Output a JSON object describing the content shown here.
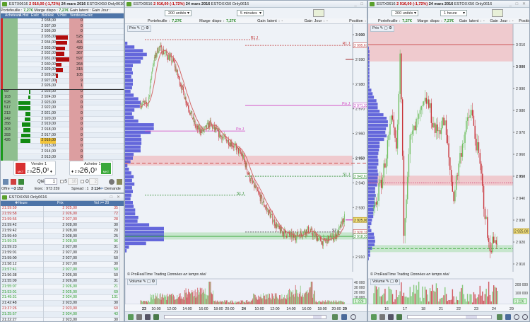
{
  "instrument_title": {
    "symbol": "ESTX0616",
    "price_change": "2 916,00 (-1,72%)",
    "date": "24 mars 2016",
    "feed": "ESTOXX50 Only0616"
  },
  "portfolio": {
    "portefeuille_label": "Portefeuille :",
    "portefeuille": "7,27€",
    "marge_label": "Marge dispo :",
    "marge": "7,27€",
    "gain_latent_label": "Gain latent :",
    "gain_latent": "-",
    "gain_jour_label": "Gain Jour :",
    "gain_jour": "-",
    "position_label": "Position :",
    "position": "0"
  },
  "orderbook": {
    "headers": [
      "Acheteurs",
      "A.Hist",
      "Exéc",
      "Bid/Ask",
      "V.Hist",
      "Vendeurs",
      "Exéc"
    ],
    "rows": [
      {
        "price": "2 938,00",
        "bid": "",
        "ask": "0",
        "askq": 0,
        "bidq": 0
      },
      {
        "price": "2 937,00",
        "bid": "",
        "ask": "0",
        "askq": 0,
        "bidq": 0
      },
      {
        "price": "2 936,00",
        "bid": "",
        "ask": "0",
        "askq": 0,
        "bidq": 0
      },
      {
        "price": "2 935,00",
        "bid": "",
        "ask": "525",
        "askq": 525,
        "bidq": 0
      },
      {
        "price": "2 934,00",
        "bid": "",
        "ask": "491",
        "askq": 491,
        "bidq": 0
      },
      {
        "price": "2 933,00",
        "bid": "",
        "ask": "420",
        "askq": 420,
        "bidq": 0
      },
      {
        "price": "2 932,00",
        "bid": "",
        "ask": "367",
        "askq": 367,
        "bidq": 0
      },
      {
        "price": "2 931,00",
        "bid": "",
        "ask": "597",
        "askq": 597,
        "bidq": 0
      },
      {
        "price": "2 930,00",
        "bid": "",
        "ask": "264",
        "askq": 264,
        "bidq": 0
      },
      {
        "price": "2 929,00",
        "bid": "",
        "ask": "315",
        "askq": 315,
        "bidq": 0
      },
      {
        "price": "2 928,00",
        "bid": "",
        "ask": "105",
        "askq": 105,
        "bidq": 0
      },
      {
        "price": "2 927,00",
        "bid": "",
        "ask": "9",
        "askq": 9,
        "bidq": 0
      },
      {
        "price": "2 926,00",
        "bid": "",
        "ask": "1",
        "askq": 1,
        "bidq": 0
      },
      {
        "price": "2 925,00",
        "bid": "69",
        "ask": "0",
        "askq": 0,
        "bidq": 69
      },
      {
        "price": "2 924,00",
        "bid": "103",
        "ask": "0",
        "askq": 0,
        "bidq": 103
      },
      {
        "price": "2 923,00",
        "bid": "528",
        "ask": "0",
        "askq": 0,
        "bidq": 528
      },
      {
        "price": "2 922,00",
        "bid": "517",
        "ask": "0",
        "askq": 0,
        "bidq": 517
      },
      {
        "price": "2 921,00",
        "bid": "213",
        "ask": "0",
        "askq": 0,
        "bidq": 213
      },
      {
        "price": "2 920,00",
        "bid": "242",
        "ask": "0",
        "askq": 0,
        "bidq": 242
      },
      {
        "price": "2 919,00",
        "bid": "358",
        "ask": "0",
        "askq": 0,
        "bidq": 358
      },
      {
        "price": "2 918,00",
        "bid": "303",
        "ask": "0",
        "askq": 0,
        "bidq": 303
      },
      {
        "price": "2 917,00",
        "bid": "393",
        "ask": "0",
        "askq": 0,
        "bidq": 393
      },
      {
        "price": "2 916,00",
        "bid": "426",
        "ask": "0",
        "askq": 0,
        "bidq": 426,
        "last": true
      },
      {
        "price": "2 915,00",
        "bid": "",
        "ask": "0",
        "askq": 0,
        "bidq": 0
      },
      {
        "price": "2 914,00",
        "bid": "",
        "ask": "0",
        "askq": 0,
        "bidq": 0
      },
      {
        "price": "2 913,00",
        "bid": "",
        "ask": "0",
        "askq": 0,
        "bidq": 0
      }
    ]
  },
  "order_buttons": {
    "sell_label": "Vendre 1",
    "sell_prefix": "2 9",
    "sell_price": "25,0",
    "sell_sup": "0",
    "buy_label": "Acheter 1",
    "buy_prefix": "2 9",
    "buy_price": "26,0",
    "buy_sup": "0",
    "mkt": "MKT"
  },
  "qty_row": {
    "qty_label": "Qté",
    "qty": "1",
    "s_label": "S",
    "s_value": "10",
    "o_label": "O",
    "o_value": "2"
  },
  "stats": {
    "offre_label": "Offre",
    "offre": "3 152",
    "exec_label": "Exec :",
    "exec": "973 259",
    "spread_label": "Spread :",
    "spread": "1",
    "demande": "3 114",
    "demande_label": "Demande"
  },
  "trades_window": {
    "title": "ESTOXX50 Only0616",
    "headers": [
      "Heure",
      "Prix",
      "Vol >= 20"
    ],
    "rows": [
      [
        "21:59:59",
        "2 925,00",
        "35",
        "sell"
      ],
      [
        "21:59:58",
        "2 926,00",
        "72",
        "sell"
      ],
      [
        "21:59:56",
        "2 927,00",
        "28",
        "sell"
      ],
      [
        "21:59:42",
        "2 928,00",
        "30",
        "neutral"
      ],
      [
        "21:59:42",
        "2 928,00",
        "20",
        "neutral"
      ],
      [
        "21:59:40",
        "2 928,00",
        "25",
        "neutral"
      ],
      [
        "21:59:25",
        "2 928,00",
        "96",
        "buy"
      ],
      [
        "21:59:23",
        "2 927,00",
        "31",
        "neutral"
      ],
      [
        "21:59:01",
        "2 927,00",
        "23",
        "neutral"
      ],
      [
        "21:59:00",
        "2 927,00",
        "50",
        "neutral"
      ],
      [
        "21:58:12",
        "2 927,00",
        "30",
        "neutral"
      ],
      [
        "21:57:41",
        "2 927,00",
        "50",
        "buy"
      ],
      [
        "21:56:38",
        "2 926,00",
        "50",
        "neutral"
      ],
      [
        "21:55:09",
        "2 926,00",
        "31",
        "neutral"
      ],
      [
        "21:55:07",
        "2 926,00",
        "21",
        "buy"
      ],
      [
        "21:53:01",
        "2 925,00",
        "69",
        "buy"
      ],
      [
        "21:49:31",
        "2 924,00",
        "131",
        "buy"
      ],
      [
        "21:42:48",
        "2 923,00",
        "30",
        "neutral"
      ],
      [
        "21:37:26",
        "2 923,00",
        "60",
        "sell"
      ],
      [
        "21:25:57",
        "2 924,00",
        "43",
        "buy"
      ],
      [
        "21:22:27",
        "2 923,00",
        "30",
        "neutral"
      ],
      [
        "21:07:35",
        "2 923,00",
        "44",
        "buy"
      ],
      [
        "21:05:32",
        "2 922,00",
        "121",
        "neutral"
      ]
    ]
  },
  "chart_5min": {
    "units": "200 unités",
    "timeframe": "5 minutes",
    "panel_label": "Prix",
    "volume_label": "Volume",
    "watermark": "© ProRealTime Trading",
    "watermark_note": "Données en temps réel",
    "price_ticks": [
      "3 000",
      "2 990",
      "2 980",
      "2 970",
      "2 960",
      "2 950",
      "2 940",
      "2 930",
      "2 910"
    ],
    "price_tick_values": [
      3000,
      2990,
      2980,
      2970,
      2960,
      2950,
      2940,
      2930,
      2910
    ],
    "tags": [
      {
        "text": "2 995,67",
        "value": 2995.67,
        "color": "#c04040"
      },
      {
        "text": "2 971,33",
        "value": 2971.33,
        "color": "#c040c0"
      },
      {
        "text": "2 942,67",
        "value": 2942.67,
        "color": "#2a8a2a"
      },
      {
        "text": "2 925,00",
        "value": 2925,
        "color": "#b08a00",
        "fill": "#f5e27a"
      },
      {
        "text": "2 920,10",
        "value": 2920.1,
        "color": "#c04040"
      },
      {
        "text": "2 918,33",
        "value": 2918.33,
        "color": "#2a8a2a"
      }
    ],
    "levels": [
      {
        "label": "R1 J",
        "value": 2998
      },
      {
        "label": "R1 J",
        "value": 2995.67
      },
      {
        "label": "Piv J",
        "value": 2971.33
      },
      {
        "label": "Piv J",
        "value": 2961
      },
      {
        "label": "S1 J",
        "value": 2942.67
      },
      {
        "label": "S1 J",
        "value": 2935
      },
      {
        "label": "S2 J",
        "value": 2920.1
      }
    ],
    "volume_ticks": [
      "40 000",
      "30 000",
      "20 000",
      "10 000"
    ],
    "volume_last": "1 226",
    "time_ticks": [
      "23",
      "10:00",
      "12:00",
      "14:00",
      "16:00",
      "18:00",
      "20:00",
      "24",
      "10:00",
      "12:00",
      "14:00",
      "16:00",
      "18:00",
      "20:00",
      "29"
    ],
    "price_path": [
      [
        "23 08:00",
        2972
      ],
      [
        "23 09:00",
        2972
      ],
      [
        "23 09:40",
        2988
      ],
      [
        "23 10:30",
        2995
      ],
      [
        "23 12:30",
        2989
      ],
      [
        "23 14:10",
        2974
      ],
      [
        "23 15:40",
        2962
      ],
      [
        "23 16:40",
        2961
      ],
      [
        "23 17:30",
        2964
      ],
      [
        "23 19:00",
        2959
      ],
      [
        "23 20:30",
        2956
      ],
      [
        "24 08:00",
        2951
      ],
      [
        "24 09:00",
        2942
      ],
      [
        "24 11:00",
        2931
      ],
      [
        "24 13:00",
        2921
      ],
      [
        "24 15:00",
        2918
      ],
      [
        "24 17:00",
        2921
      ],
      [
        "24 19:00",
        2916
      ],
      [
        "24 21:00",
        2919
      ],
      [
        "24 22:00",
        2926
      ]
    ]
  },
  "chart_hourly": {
    "units": "200 unités",
    "timeframe": "1 heure",
    "panel_label": "Prix",
    "volume_label": "Volume",
    "watermark": "© ProRealTime Trading",
    "watermark_note": "Données en temps réel",
    "price_ticks": [
      "3 020",
      "3 010",
      "3 000",
      "2 990",
      "2 980",
      "2 970",
      "2 960",
      "2 950",
      "2 940",
      "2 930",
      "2 920",
      "2 910"
    ],
    "price_tick_values": [
      3020,
      3010,
      3000,
      2990,
      2980,
      2970,
      2960,
      2950,
      2940,
      2930,
      2920,
      2910
    ],
    "last_tag": "2 925,00",
    "volume_ticks": [
      "200 000",
      "100 000"
    ],
    "volume_last": "1 226",
    "time_ticks": [
      "16",
      "17",
      "18",
      "21",
      "22",
      "23",
      "24",
      "29"
    ],
    "price_path": [
      [
        "16",
        2935
      ],
      [
        "16.5",
        2950
      ],
      [
        "17",
        2975
      ],
      [
        "17.3",
        2960
      ],
      [
        "17.5",
        3008
      ],
      [
        "17.7",
        2925
      ],
      [
        "18",
        2965
      ],
      [
        "18.5",
        2975
      ],
      [
        "21",
        2985
      ],
      [
        "21.5",
        2970
      ],
      [
        "22",
        2975
      ],
      [
        "22.5",
        2940
      ],
      [
        "23",
        2965
      ],
      [
        "23.5",
        2980
      ],
      [
        "24",
        2955
      ],
      [
        "24.5",
        2918
      ],
      [
        "29",
        2922
      ]
    ]
  },
  "colors": {
    "up": "#6fbf5f",
    "down": "#c8343a",
    "ma": "#d46a6a",
    "profile": "#4b4fd6",
    "ask": "#b10c0c",
    "bid": "#118a11",
    "pivot": "#d040c0",
    "resistance": "#c03030",
    "support": "#2a8a2a"
  }
}
